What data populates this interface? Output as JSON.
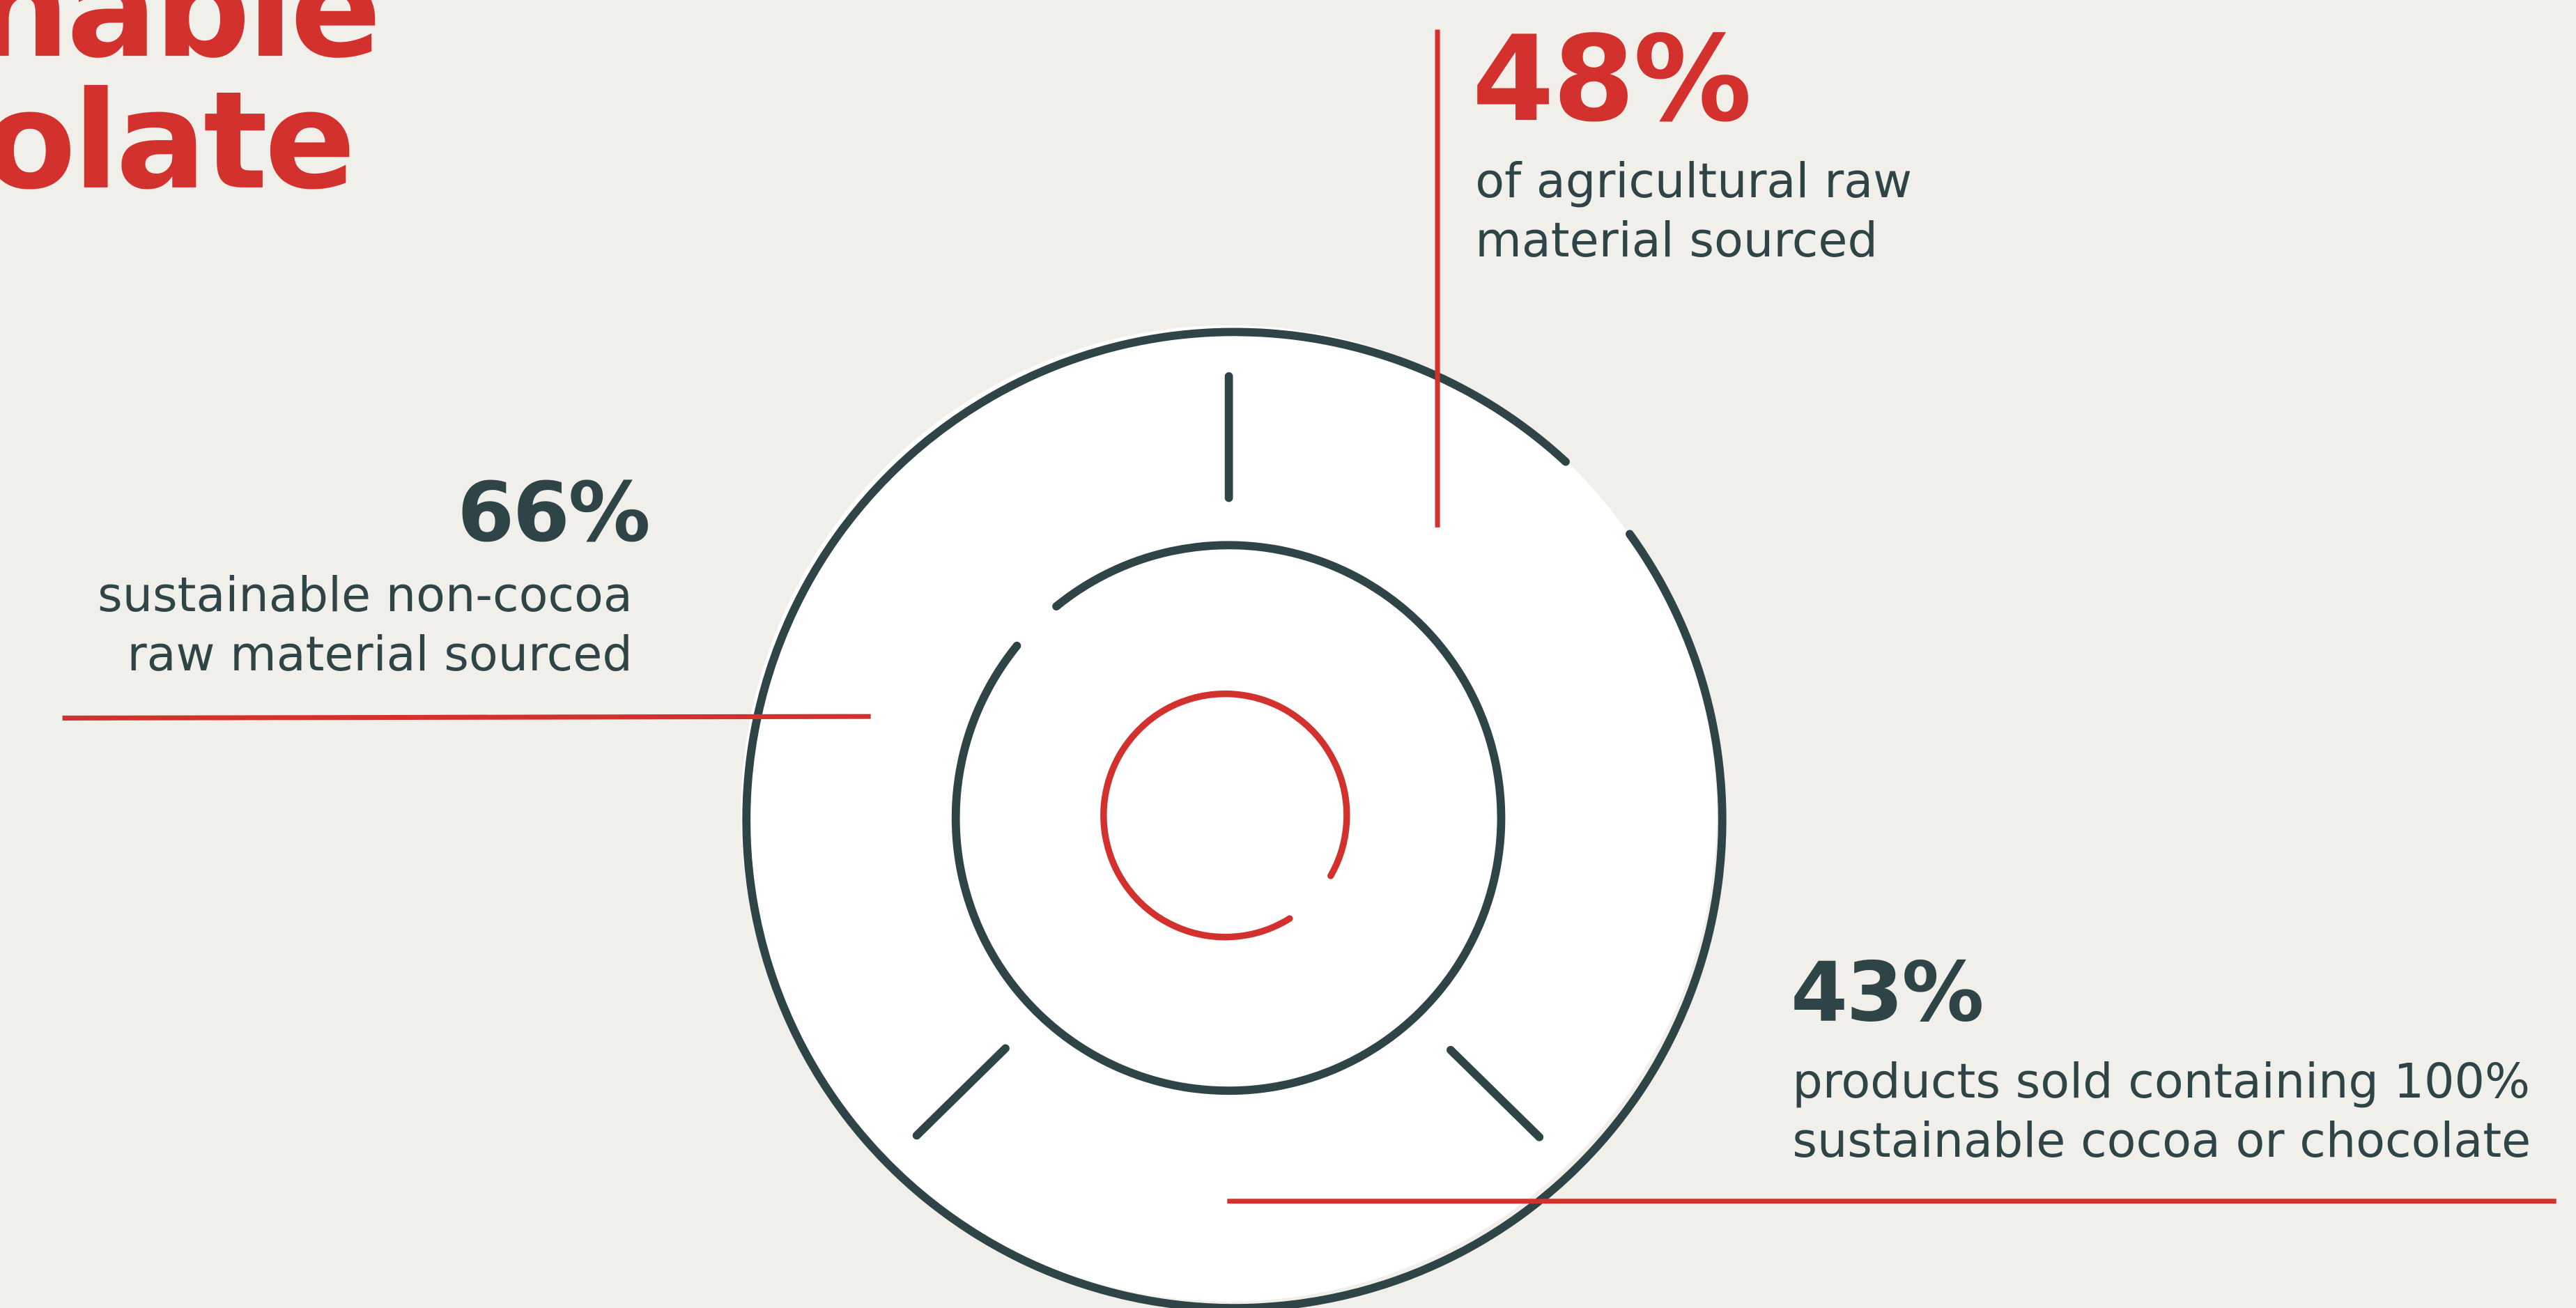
{
  "title": {
    "line1": "inable",
    "line2": "olate"
  },
  "colors": {
    "background": "#f1efea",
    "accent_red": "#d2312d",
    "dark_slate": "#2f4446",
    "ring_fill": "#ffffff"
  },
  "stats": [
    {
      "id": "agricultural",
      "value": "48%",
      "desc_line1": "of agricultural raw",
      "desc_line2": "material sourced",
      "color": "#d2312d"
    },
    {
      "id": "non_cocoa",
      "value": "66%",
      "desc_line1": "sustainable non-cocoa",
      "desc_line2": "raw material sourced",
      "color": "#2f4446"
    },
    {
      "id": "cocoa_products",
      "value": "43%",
      "desc_line1": "products sold containing 100%",
      "desc_line2": "sustainable cocoa or chocolate",
      "color": "#2f4446"
    }
  ]
}
